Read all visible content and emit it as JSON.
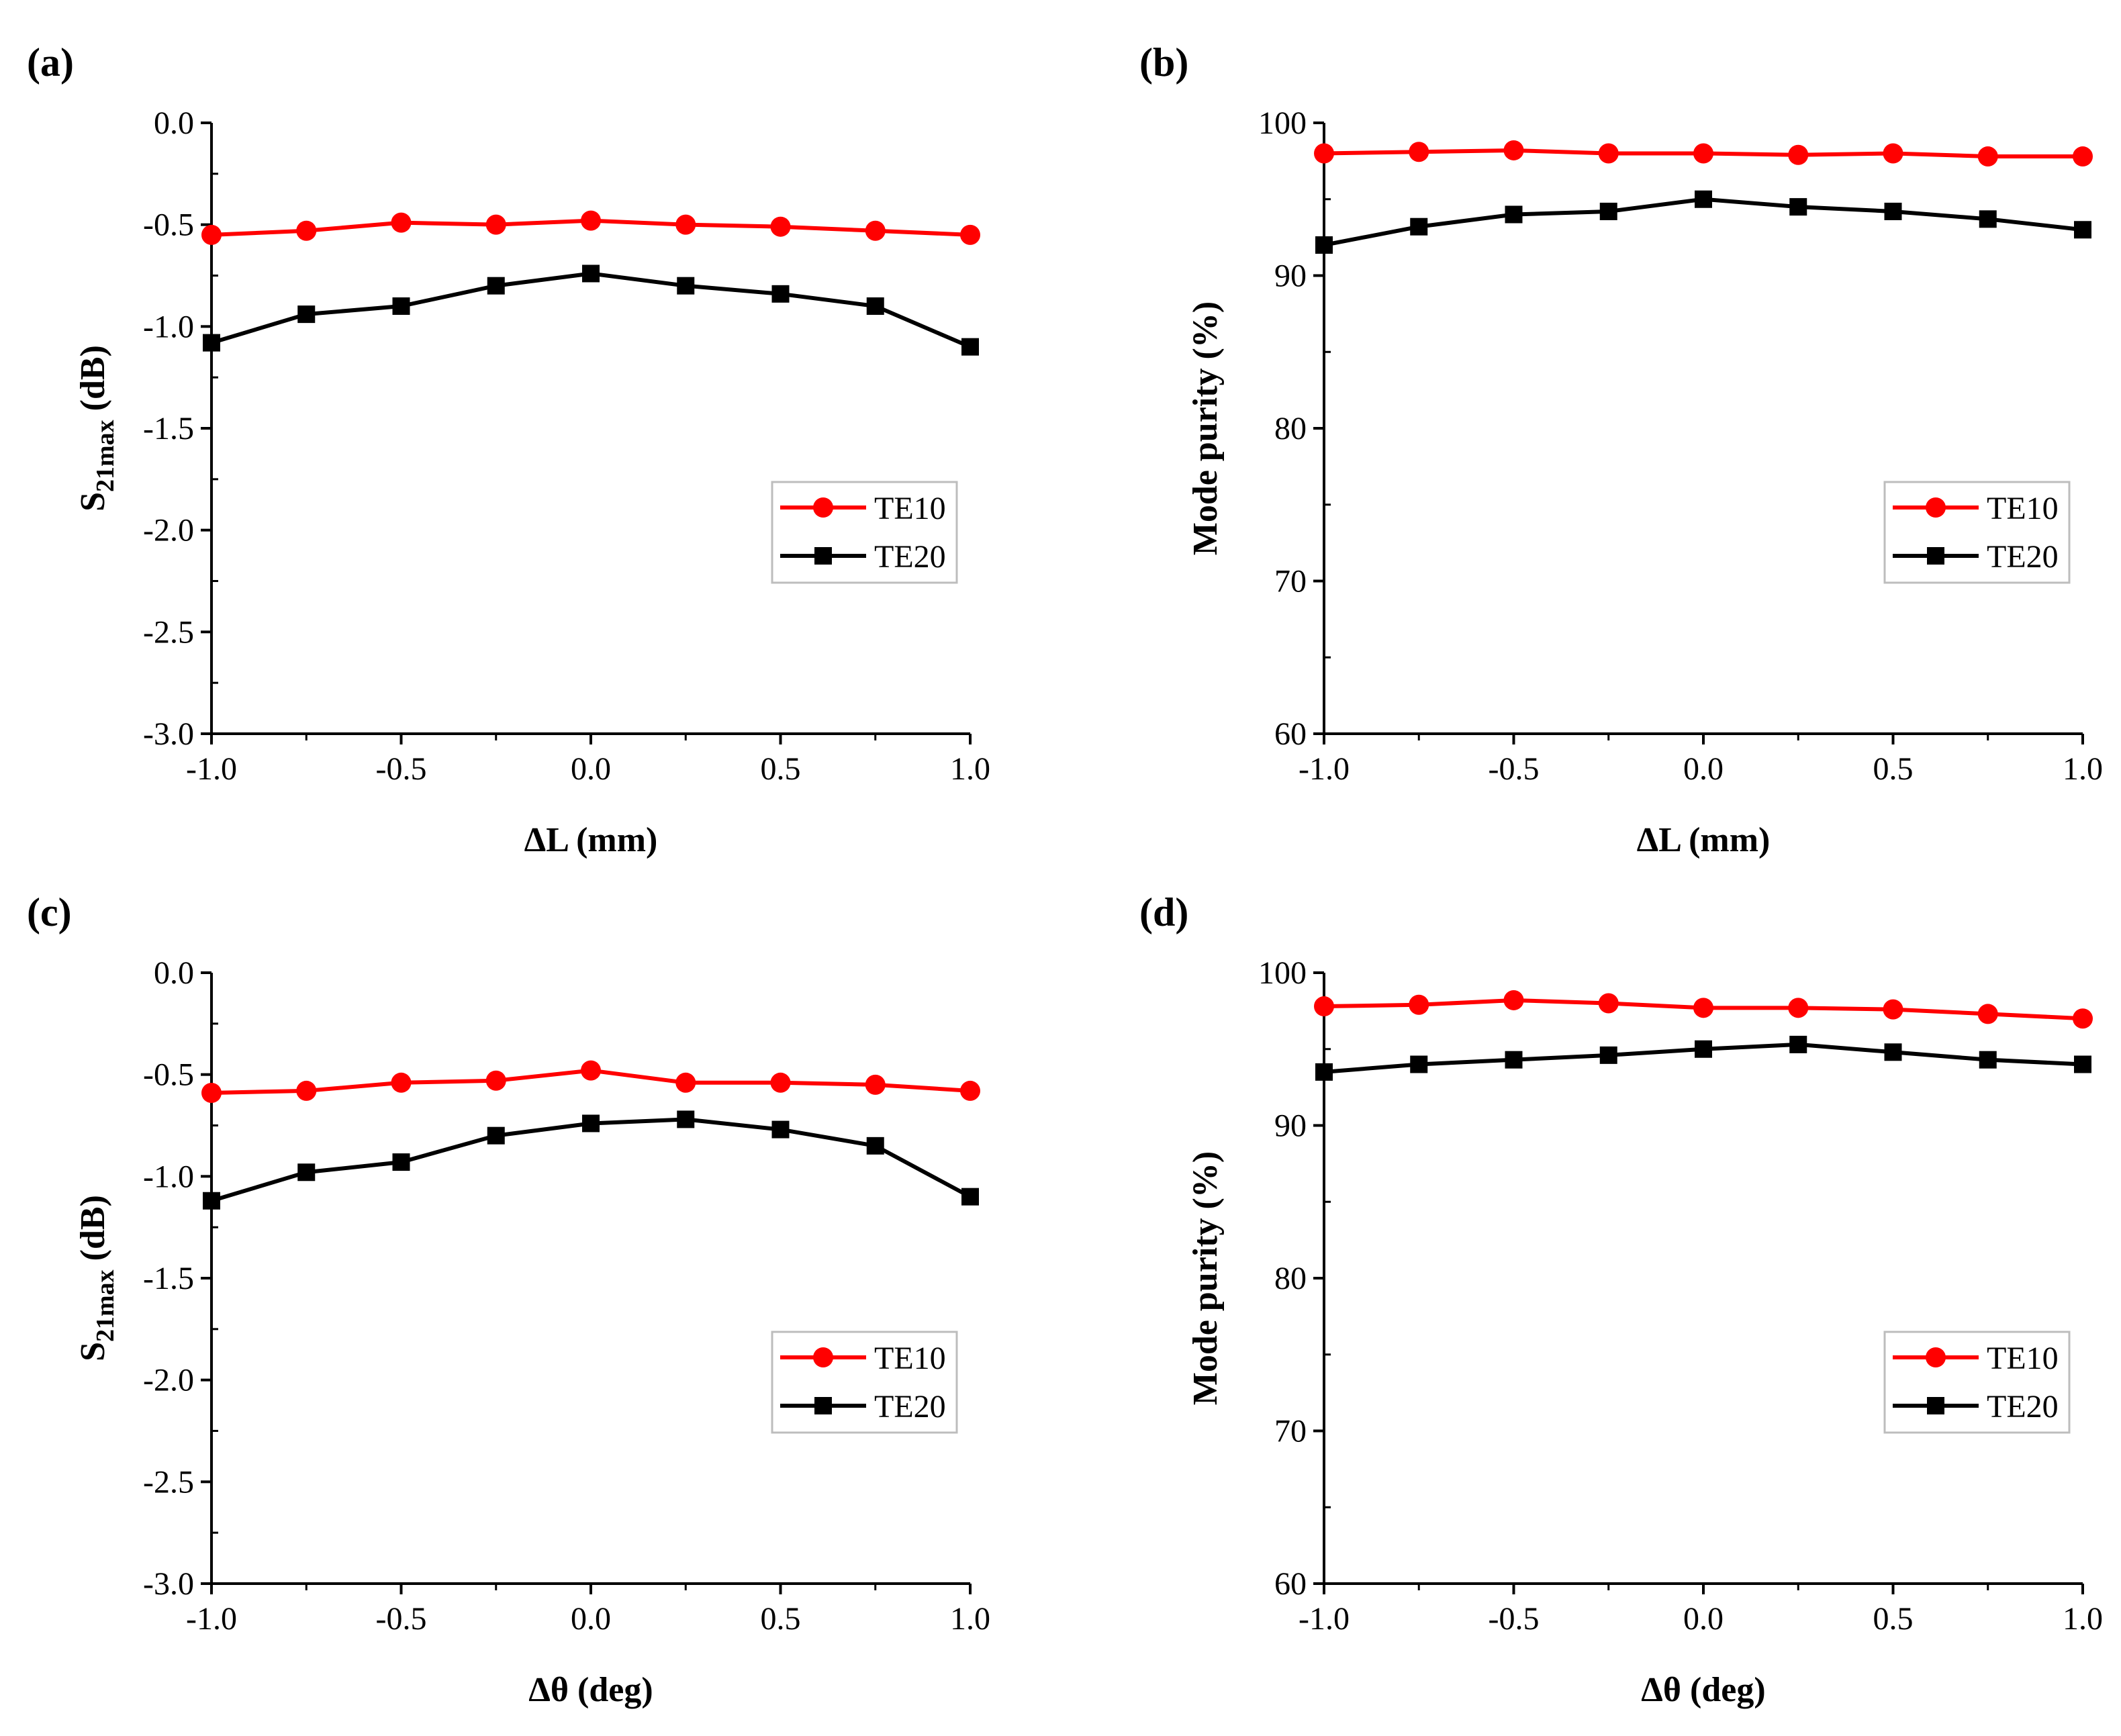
{
  "chart_data": [
    {
      "type": "line",
      "panel_label": "(a)",
      "xlabel": "ΔL (mm)",
      "ylabel_main": "S",
      "ylabel_sub": "21max",
      "ylabel_rest": " (dB)",
      "xlim": [
        -1.0,
        1.0
      ],
      "ylim": [
        -3.0,
        0.0
      ],
      "xticks": [
        -1.0,
        -0.5,
        0.0,
        0.5,
        1.0
      ],
      "xtick_labels": [
        "-1.0",
        "-0.5",
        "0.0",
        "0.5",
        "1.0"
      ],
      "yticks": [
        -3.0,
        -2.5,
        -2.0,
        -1.5,
        -1.0,
        -0.5,
        0.0
      ],
      "ytick_labels": [
        "-3.0",
        "-2.5",
        "-2.0",
        "-1.5",
        "-1.0",
        "-0.5",
        "0.0"
      ],
      "legend_position": "lower-right",
      "series": [
        {
          "name": "TE10",
          "color": "#ff0000",
          "marker": "circle",
          "x": [
            -1.0,
            -0.75,
            -0.5,
            -0.25,
            0.0,
            0.25,
            0.5,
            0.75,
            1.0
          ],
          "y": [
            -0.55,
            -0.53,
            -0.49,
            -0.5,
            -0.48,
            -0.5,
            -0.51,
            -0.53,
            -0.55
          ]
        },
        {
          "name": "TE20",
          "color": "#000000",
          "marker": "square",
          "x": [
            -1.0,
            -0.75,
            -0.5,
            -0.25,
            0.0,
            0.25,
            0.5,
            0.75,
            1.0
          ],
          "y": [
            -1.08,
            -0.94,
            -0.9,
            -0.8,
            -0.74,
            -0.8,
            -0.84,
            -0.9,
            -1.1
          ]
        }
      ]
    },
    {
      "type": "line",
      "panel_label": "(b)",
      "xlabel": "ΔL (mm)",
      "ylabel_main": "Mode purity (%)",
      "ylabel_sub": "",
      "ylabel_rest": "",
      "xlim": [
        -1.0,
        1.0
      ],
      "ylim": [
        60,
        100
      ],
      "xticks": [
        -1.0,
        -0.5,
        0.0,
        0.5,
        1.0
      ],
      "xtick_labels": [
        "-1.0",
        "-0.5",
        "0.0",
        "0.5",
        "1.0"
      ],
      "yticks": [
        60,
        70,
        80,
        90,
        100
      ],
      "ytick_labels": [
        "60",
        "70",
        "80",
        "90",
        "100"
      ],
      "legend_position": "lower-right",
      "series": [
        {
          "name": "TE10",
          "color": "#ff0000",
          "marker": "circle",
          "x": [
            -1.0,
            -0.75,
            -0.5,
            -0.25,
            0.0,
            0.25,
            0.5,
            0.75,
            1.0
          ],
          "y": [
            98.0,
            98.1,
            98.2,
            98.0,
            98.0,
            97.9,
            98.0,
            97.8,
            97.8
          ]
        },
        {
          "name": "TE20",
          "color": "#000000",
          "marker": "square",
          "x": [
            -1.0,
            -0.75,
            -0.5,
            -0.25,
            0.0,
            0.25,
            0.5,
            0.75,
            1.0
          ],
          "y": [
            92.0,
            93.2,
            94.0,
            94.2,
            95.0,
            94.5,
            94.2,
            93.7,
            93.0
          ]
        }
      ]
    },
    {
      "type": "line",
      "panel_label": "(c)",
      "xlabel": "Δθ (deg)",
      "ylabel_main": "S",
      "ylabel_sub": "21max",
      "ylabel_rest": " (dB)",
      "xlim": [
        -1.0,
        1.0
      ],
      "ylim": [
        -3.0,
        0.0
      ],
      "xticks": [
        -1.0,
        -0.5,
        0.0,
        0.5,
        1.0
      ],
      "xtick_labels": [
        "-1.0",
        "-0.5",
        "0.0",
        "0.5",
        "1.0"
      ],
      "yticks": [
        -3.0,
        -2.5,
        -2.0,
        -1.5,
        -1.0,
        -0.5,
        0.0
      ],
      "ytick_labels": [
        "-3.0",
        "-2.5",
        "-2.0",
        "-1.5",
        "-1.0",
        "-0.5",
        "0.0"
      ],
      "legend_position": "lower-right",
      "series": [
        {
          "name": "TE10",
          "color": "#ff0000",
          "marker": "circle",
          "x": [
            -1.0,
            -0.75,
            -0.5,
            -0.25,
            0.0,
            0.25,
            0.5,
            0.75,
            1.0
          ],
          "y": [
            -0.59,
            -0.58,
            -0.54,
            -0.53,
            -0.48,
            -0.54,
            -0.54,
            -0.55,
            -0.58
          ]
        },
        {
          "name": "TE20",
          "color": "#000000",
          "marker": "square",
          "x": [
            -1.0,
            -0.75,
            -0.5,
            -0.25,
            0.0,
            0.25,
            0.5,
            0.75,
            1.0
          ],
          "y": [
            -1.12,
            -0.98,
            -0.93,
            -0.8,
            -0.74,
            -0.72,
            -0.77,
            -0.85,
            -1.1
          ]
        }
      ]
    },
    {
      "type": "line",
      "panel_label": "(d)",
      "xlabel": "Δθ (deg)",
      "ylabel_main": "Mode purity (%)",
      "ylabel_sub": "",
      "ylabel_rest": "",
      "xlim": [
        -1.0,
        1.0
      ],
      "ylim": [
        60,
        100
      ],
      "xticks": [
        -1.0,
        -0.5,
        0.0,
        0.5,
        1.0
      ],
      "xtick_labels": [
        "-1.0",
        "-0.5",
        "0.0",
        "0.5",
        "1.0"
      ],
      "yticks": [
        60,
        70,
        80,
        90,
        100
      ],
      "ytick_labels": [
        "60",
        "70",
        "80",
        "90",
        "100"
      ],
      "legend_position": "lower-right",
      "series": [
        {
          "name": "TE10",
          "color": "#ff0000",
          "marker": "circle",
          "x": [
            -1.0,
            -0.75,
            -0.5,
            -0.25,
            0.0,
            0.25,
            0.5,
            0.75,
            1.0
          ],
          "y": [
            97.8,
            97.9,
            98.2,
            98.0,
            97.7,
            97.7,
            97.6,
            97.3,
            97.0
          ]
        },
        {
          "name": "TE20",
          "color": "#000000",
          "marker": "square",
          "x": [
            -1.0,
            -0.75,
            -0.5,
            -0.25,
            0.0,
            0.25,
            0.5,
            0.75,
            1.0
          ],
          "y": [
            93.5,
            94.0,
            94.3,
            94.6,
            95.0,
            95.3,
            94.8,
            94.3,
            94.0
          ]
        }
      ]
    }
  ]
}
